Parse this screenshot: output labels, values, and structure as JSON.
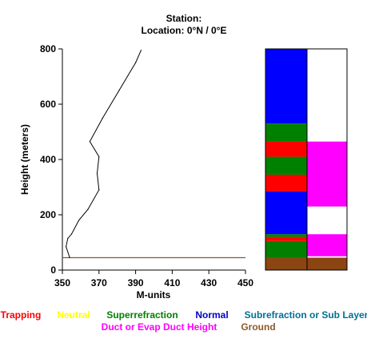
{
  "header": {
    "station_line": "Station:",
    "location_line": "Location:   0°N /   0°E"
  },
  "chart_data": {
    "type": "line",
    "xlabel": "M-units",
    "ylabel": "Height (meters)",
    "xlim": [
      350,
      450
    ],
    "ylim": [
      0,
      800
    ],
    "x_ticks": [
      "350",
      "370",
      "390",
      "410",
      "430",
      "450"
    ],
    "y_ticks": [
      "0",
      "200",
      "400",
      "600",
      "800"
    ],
    "profile": {
      "x": [
        354,
        352,
        353,
        355,
        359,
        364,
        370,
        369,
        370,
        365,
        372,
        381,
        390,
        393
      ],
      "y": [
        45,
        85,
        115,
        130,
        180,
        220,
        290,
        350,
        410,
        465,
        550,
        650,
        750,
        795
      ]
    },
    "ground_line": {
      "y": 45,
      "color": "#8B5A2B"
    },
    "refractivity_bar": [
      {
        "from": 0,
        "to": 45,
        "color": "#8B4513"
      },
      {
        "from": 45,
        "to": 105,
        "color": "#008000"
      },
      {
        "from": 105,
        "to": 120,
        "color": "#FF0000"
      },
      {
        "from": 120,
        "to": 130,
        "color": "#008000"
      },
      {
        "from": 130,
        "to": 285,
        "color": "#0000FF"
      },
      {
        "from": 285,
        "to": 345,
        "color": "#FF0000"
      },
      {
        "from": 345,
        "to": 410,
        "color": "#008000"
      },
      {
        "from": 410,
        "to": 465,
        "color": "#FF0000"
      },
      {
        "from": 465,
        "to": 530,
        "color": "#008000"
      },
      {
        "from": 530,
        "to": 800,
        "color": "#0000FF"
      }
    ],
    "duct_bar": [
      {
        "from": 0,
        "to": 45,
        "color": "#8B4513"
      },
      {
        "from": 45,
        "to": 50,
        "color": "#FFFFFF"
      },
      {
        "from": 50,
        "to": 130,
        "color": "#FF00FF"
      },
      {
        "from": 130,
        "to": 230,
        "color": "#FFFFFF"
      },
      {
        "from": 230,
        "to": 465,
        "color": "#FF00FF"
      },
      {
        "from": 465,
        "to": 800,
        "color": "#FFFFFF"
      }
    ],
    "legend": {
      "row1": [
        {
          "label": "Trapping",
          "color": "#FF0000"
        },
        {
          "label": "Neutral",
          "color": "#FFFF00"
        },
        {
          "label": "Superrefraction",
          "color": "#008000"
        },
        {
          "label": "Normal",
          "color": "#0000C8"
        },
        {
          "label": "Subrefraction or Sub Layer",
          "color": "#007090"
        }
      ],
      "row2": [
        {
          "label": "Duct or Evap Duct Height",
          "color": "#FF00FF"
        },
        {
          "label": "Ground",
          "color": "#8B5A2B"
        }
      ]
    }
  }
}
